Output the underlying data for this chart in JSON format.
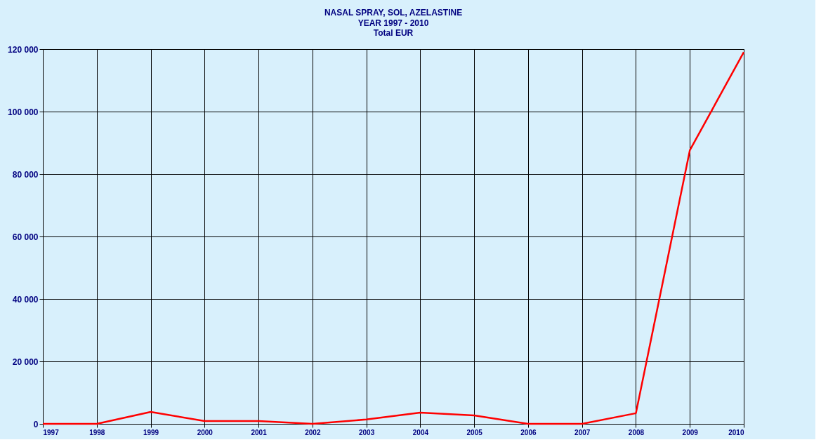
{
  "chart_data": {
    "type": "line",
    "title": "NASAL SPRAY, SOL, AZELASTINE",
    "subtitle": "YEAR 1997 - 2010\nTotal  EUR",
    "x": [
      1997,
      1998,
      1999,
      2000,
      2001,
      2002,
      2003,
      2004,
      2005,
      2006,
      2007,
      2008,
      2009,
      2010
    ],
    "series": [
      {
        "color": "#ff0000",
        "values": [
          0,
          0,
          3800,
          900,
          900,
          0,
          1400,
          3600,
          2700,
          0,
          0,
          3400,
          87600,
          119000
        ]
      }
    ],
    "xlim": [
      1997,
      2010
    ],
    "xticks": [
      1997,
      1998,
      1999,
      2000,
      2001,
      2002,
      2003,
      2004,
      2005,
      2006,
      2007,
      2008,
      2009,
      2010
    ],
    "ylim": [
      0,
      120000
    ],
    "yticks": [
      0,
      {
        "value": 20000,
        "label": "20 000"
      },
      {
        "value": 40000,
        "label": "40 000"
      },
      {
        "value": 60000,
        "label": "60 000"
      },
      {
        "value": 80000,
        "label": "80 000"
      },
      {
        "value": 100000,
        "label": "100 000"
      },
      {
        "value": 120000,
        "label": "120 000"
      }
    ],
    "grid": true,
    "marker": "none",
    "line_style": "solid"
  }
}
